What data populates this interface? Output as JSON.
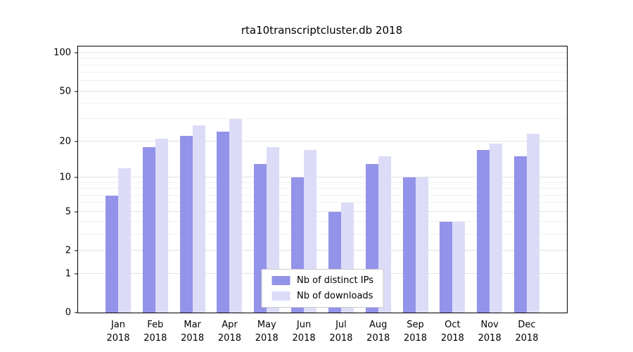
{
  "figure": {
    "title": "rta10transcriptcluster.db 2018"
  },
  "chart_data": {
    "type": "bar",
    "title": "rta10transcriptcluster.db 2018",
    "xlabel": "",
    "ylabel": "",
    "yscale": "log1p",
    "ylim": [
      0,
      112
    ],
    "grid": true,
    "yticks": [
      0,
      1,
      2,
      5,
      10,
      20,
      50,
      100
    ],
    "minor_yticks": [
      3,
      4,
      6,
      7,
      8,
      9,
      30,
      40,
      60,
      70,
      80,
      90
    ],
    "x_tick_line1": [
      "Jan",
      "Feb",
      "Mar",
      "Apr",
      "May",
      "Jun",
      "Jul",
      "Aug",
      "Sep",
      "Oct",
      "Nov",
      "Dec"
    ],
    "x_tick_line2": [
      "2018",
      "2018",
      "2018",
      "2018",
      "2018",
      "2018",
      "2018",
      "2018",
      "2018",
      "2018",
      "2018",
      "2018"
    ],
    "categories": [
      "Jan 2018",
      "Feb 2018",
      "Mar 2018",
      "Apr 2018",
      "May 2018",
      "Jun 2018",
      "Jul 2018",
      "Aug 2018",
      "Sep 2018",
      "Oct 2018",
      "Nov 2018",
      "Dec 2018"
    ],
    "series": [
      {
        "name": "Nb of distinct IPs",
        "color": "#9393ea",
        "values": [
          7,
          18,
          22,
          24,
          13,
          10,
          5,
          13,
          10,
          4,
          17,
          15
        ]
      },
      {
        "name": "Nb of downloads",
        "color": "#dcdcf8",
        "values": [
          12,
          21,
          27,
          30,
          18,
          17,
          6,
          15,
          10,
          4,
          19,
          23
        ]
      }
    ],
    "legend_position": "lower center"
  }
}
